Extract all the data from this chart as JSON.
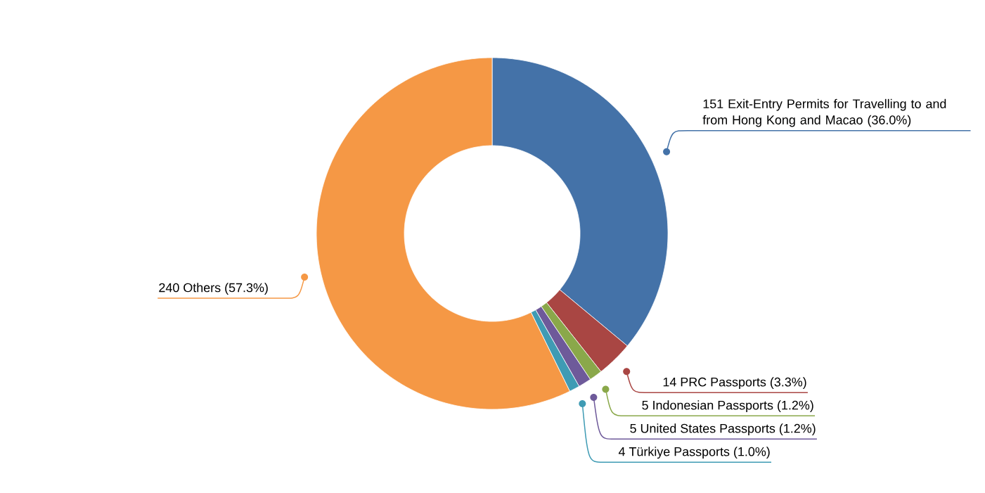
{
  "chart_data": {
    "type": "donut",
    "categories": [
      "151 Exit-Entry Permits for Travelling to and from Hong Kong and Macao (36.0%)",
      "14 PRC Passports (3.3%)",
      "5 Indonesian Passports (1.2%)",
      "5 United States Passports (1.2%)",
      "4 Türkiye Passports (1.0%)",
      "240 Others (57.3%)"
    ],
    "values": [
      151,
      14,
      5,
      5,
      4,
      240
    ],
    "colors": [
      "#4472a8",
      "#a94643",
      "#8aa84a",
      "#6e5a9a",
      "#3f9bb4",
      "#f59845"
    ]
  }
}
